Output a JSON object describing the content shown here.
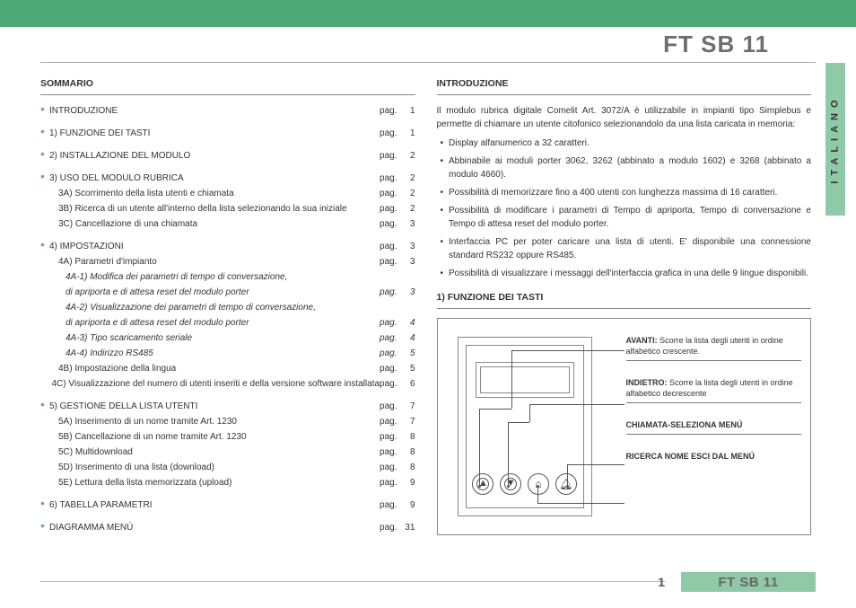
{
  "header": {
    "doc_title": "FT SB 11"
  },
  "side_tab": "ITALIANO",
  "toc_title": "SOMMARIO",
  "intro_title": "INTRODUZIONE",
  "func_title": "1) FUNZIONE DEI TASTI",
  "toc": [
    {
      "type": "main",
      "bullet": true,
      "label": "INTRODUZIONE",
      "pag": "pag.",
      "num": "1"
    },
    {
      "type": "gap"
    },
    {
      "type": "main",
      "bullet": true,
      "label": "1) FUNZIONE DEI TASTI",
      "pag": "pag.",
      "num": "1"
    },
    {
      "type": "gap"
    },
    {
      "type": "main",
      "bullet": true,
      "label": "2) INSTALLAZIONE DEL MODULO",
      "pag": "pag.",
      "num": "2"
    },
    {
      "type": "gap"
    },
    {
      "type": "main",
      "bullet": true,
      "label": "3) USO DEL MODULO RUBRICA",
      "pag": "pag.",
      "num": "2"
    },
    {
      "type": "sub",
      "label": "3A) Scorrimento della lista utenti e chiamata",
      "pag": "pag.",
      "num": "2"
    },
    {
      "type": "sub",
      "label": "3B) Ricerca di un utente all'interno della lista selezionando la sua iniziale",
      "pag": "pag.",
      "num": "2"
    },
    {
      "type": "sub",
      "label": "3C) Cancellazione di una chiamata",
      "pag": "pag.",
      "num": "3"
    },
    {
      "type": "gap"
    },
    {
      "type": "main",
      "bullet": true,
      "label": "4) IMPOSTAZIONI",
      "pag": "pag.",
      "num": "3"
    },
    {
      "type": "sub",
      "label": "4A) Parametri d'impianto",
      "pag": "pag.",
      "num": "3"
    },
    {
      "type": "sub2",
      "label": "4A-1) Modifica dei parametri di tempo di conversazione,",
      "pag": "",
      "num": ""
    },
    {
      "type": "sub2",
      "label": "di apriporta e di attesa reset  del modulo porter",
      "pag": "pag.",
      "num": "3"
    },
    {
      "type": "sub2",
      "label": "4A-2) Visualizzazione dei parametri di tempo di conversazione,",
      "pag": "",
      "num": ""
    },
    {
      "type": "sub2",
      "label": "di apriporta e di attesa reset del modulo porter",
      "pag": "pag.",
      "num": "4"
    },
    {
      "type": "sub2",
      "label": "4A-3) Tipo scaricamento seriale",
      "pag": "pag.",
      "num": "4"
    },
    {
      "type": "sub2",
      "label": "4A-4) Indirizzo RS485",
      "pag": "pag.",
      "num": "5"
    },
    {
      "type": "sub",
      "label": "4B) Impostazione della lingua",
      "pag": "pag.",
      "num": "5"
    },
    {
      "type": "sub",
      "label": "4C) Visualizzazione del numero di utenti inseriti e della versione software installata",
      "pag": "pag.",
      "num": "6"
    },
    {
      "type": "gap"
    },
    {
      "type": "main",
      "bullet": true,
      "label": "5) GESTIONE DELLA LISTA UTENTI",
      "pag": "pag.",
      "num": "7"
    },
    {
      "type": "sub",
      "label": "5A) Inserimento di un nome tramite Art. 1230",
      "pag": "pag.",
      "num": "7"
    },
    {
      "type": "sub",
      "label": "5B) Cancellazione di un nome tramite Art. 1230",
      "pag": "pag.",
      "num": "8"
    },
    {
      "type": "sub",
      "label": "5C) Multidownload",
      "pag": "pag.",
      "num": "8"
    },
    {
      "type": "sub",
      "label": "5D) Inserimento di una lista (download)",
      "pag": "pag.",
      "num": "8"
    },
    {
      "type": "sub",
      "label": "5E) Lettura della lista memorizzata (upload)",
      "pag": "pag.",
      "num": "9"
    },
    {
      "type": "gap"
    },
    {
      "type": "main",
      "bullet": true,
      "label": "6) TABELLA PARAMETRI",
      "pag": "pag.",
      "num": "9"
    },
    {
      "type": "gap"
    },
    {
      "type": "main",
      "bullet": true,
      "label": "DIAGRAMMA MENÚ",
      "pag": "pag.",
      "num": "31"
    }
  ],
  "intro_para": "Il modulo rubrica digitale Comelit Art. 3072/A è utilizzabile  in impianti tipo Simplebus e permette di chiamare un utente citofonico selezionandolo da una lista caricata in memoria:",
  "intro_bullets": [
    "Display alfanumerico a 32 caratteri.",
    "Abbinabile ai moduli porter 3062, 3262 (abbinato a modulo 1602) e 3268 (abbinato a modulo 4660).",
    "Possibilità di memorizzare fino a 400 utenti con lunghezza massima di 16 caratteri.",
    "Possibilità di modificare i parametri di Tempo di apriporta, Tempo di conversazione e Tempo di attesa reset del modulo porter.",
    "Interfaccia PC per poter caricare una lista di utenti. E' disponibile una connessione standard RS232 oppure RS485.",
    "Possibilità di visualizzare i messaggi dell'interfaccia grafica in una delle 9 lingue disponibili."
  ],
  "key_labels": {
    "avanti_t": "AVANTI:",
    "avanti_d": " Scorre la lista degli utenti in ordine alfabetico crescente.",
    "indietro_t": "INDIETRO:",
    "indietro_d": " Scorre la lista degli utenti in ordine alfabetico decrescente",
    "chiamata": "CHIAMATA-SELEZIONA MENÚ",
    "ricerca": "RICERCA NOME ESCI DAL MENÚ"
  },
  "footer": {
    "page": "1",
    "title": "FT SB 11"
  }
}
